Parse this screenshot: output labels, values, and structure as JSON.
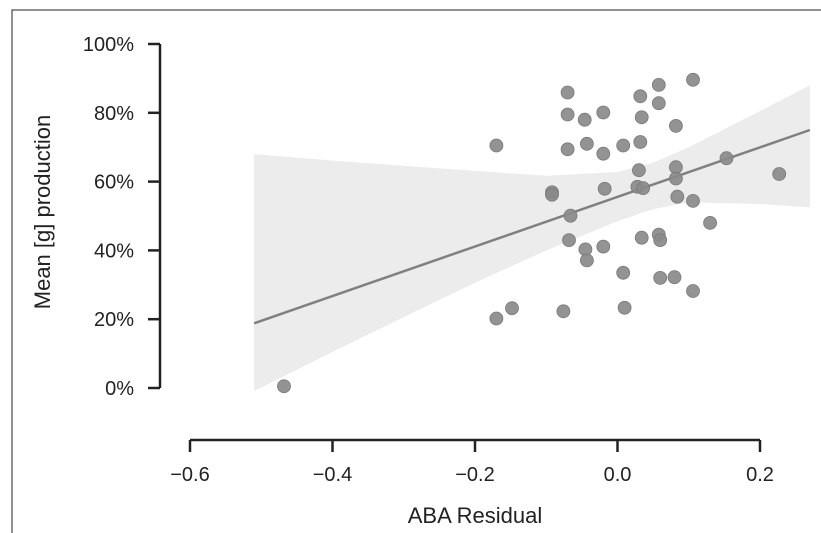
{
  "chart_data": {
    "type": "scatter",
    "title": "",
    "xlabel": "ABA Residual",
    "ylabel": "Mean [g] production",
    "xlim": [
      -0.6,
      0.2
    ],
    "ylim": [
      0,
      100
    ],
    "x_ticks": [
      -0.6,
      -0.4,
      -0.2,
      0.0,
      0.2
    ],
    "x_tick_labels": [
      "−0.6",
      "−0.4",
      "−0.2",
      "0.0",
      "0.2"
    ],
    "y_ticks": [
      0,
      20,
      40,
      60,
      80,
      100
    ],
    "y_tick_labels": [
      "0%",
      "20%",
      "40%",
      "60%",
      "80%",
      "100%"
    ],
    "grid": false,
    "legend": "none",
    "point_color": "#8a8a8a",
    "line_color": "#808080",
    "band_color": "#ececec",
    "regression": {
      "x_start": -0.51,
      "y_start": 18.8,
      "x_end": 0.27,
      "y_end": 75.0
    },
    "confidence_band": {
      "x": [
        -0.51,
        -0.4,
        -0.3,
        -0.2,
        -0.1,
        0.0,
        0.05,
        0.1,
        0.2,
        0.27
      ],
      "upper": [
        68.0,
        66.1,
        64.6,
        63.1,
        61.7,
        62.8,
        65.5,
        70.0,
        80.5,
        88.0
      ],
      "lower": [
        -0.9,
        10.5,
        20.6,
        30.6,
        40.0,
        48.5,
        52.0,
        54.0,
        53.5,
        52.5
      ]
    },
    "points": [
      {
        "x": -0.468,
        "y": 0.5
      },
      {
        "x": -0.17,
        "y": 20.2
      },
      {
        "x": -0.148,
        "y": 23.2
      },
      {
        "x": -0.17,
        "y": 70.5
      },
      {
        "x": -0.092,
        "y": 56.9
      },
      {
        "x": -0.092,
        "y": 56.2
      },
      {
        "x": -0.076,
        "y": 22.3
      },
      {
        "x": -0.07,
        "y": 85.9
      },
      {
        "x": -0.07,
        "y": 79.5
      },
      {
        "x": -0.07,
        "y": 69.4
      },
      {
        "x": -0.066,
        "y": 50.1
      },
      {
        "x": -0.068,
        "y": 43.0
      },
      {
        "x": -0.046,
        "y": 78.0
      },
      {
        "x": -0.043,
        "y": 71.0
      },
      {
        "x": -0.045,
        "y": 40.3
      },
      {
        "x": -0.043,
        "y": 37.1
      },
      {
        "x": -0.02,
        "y": 80.1
      },
      {
        "x": -0.02,
        "y": 68.1
      },
      {
        "x": -0.018,
        "y": 57.9
      },
      {
        "x": -0.02,
        "y": 41.1
      },
      {
        "x": 0.008,
        "y": 70.5
      },
      {
        "x": 0.008,
        "y": 33.5
      },
      {
        "x": 0.01,
        "y": 23.3
      },
      {
        "x": 0.032,
        "y": 84.8
      },
      {
        "x": 0.034,
        "y": 78.7
      },
      {
        "x": 0.032,
        "y": 71.5
      },
      {
        "x": 0.03,
        "y": 63.3
      },
      {
        "x": 0.028,
        "y": 58.5
      },
      {
        "x": 0.036,
        "y": 58.1
      },
      {
        "x": 0.034,
        "y": 43.7
      },
      {
        "x": 0.058,
        "y": 88.1
      },
      {
        "x": 0.058,
        "y": 82.8
      },
      {
        "x": 0.058,
        "y": 44.6
      },
      {
        "x": 0.06,
        "y": 43.0
      },
      {
        "x": 0.06,
        "y": 32.0
      },
      {
        "x": 0.08,
        "y": 32.2
      },
      {
        "x": 0.082,
        "y": 76.2
      },
      {
        "x": 0.082,
        "y": 64.2
      },
      {
        "x": 0.082,
        "y": 60.9
      },
      {
        "x": 0.084,
        "y": 55.6
      },
      {
        "x": 0.106,
        "y": 89.6
      },
      {
        "x": 0.106,
        "y": 54.4
      },
      {
        "x": 0.106,
        "y": 28.2
      },
      {
        "x": 0.13,
        "y": 48.0
      },
      {
        "x": 0.153,
        "y": 66.8
      },
      {
        "x": 0.227,
        "y": 62.2
      }
    ]
  }
}
